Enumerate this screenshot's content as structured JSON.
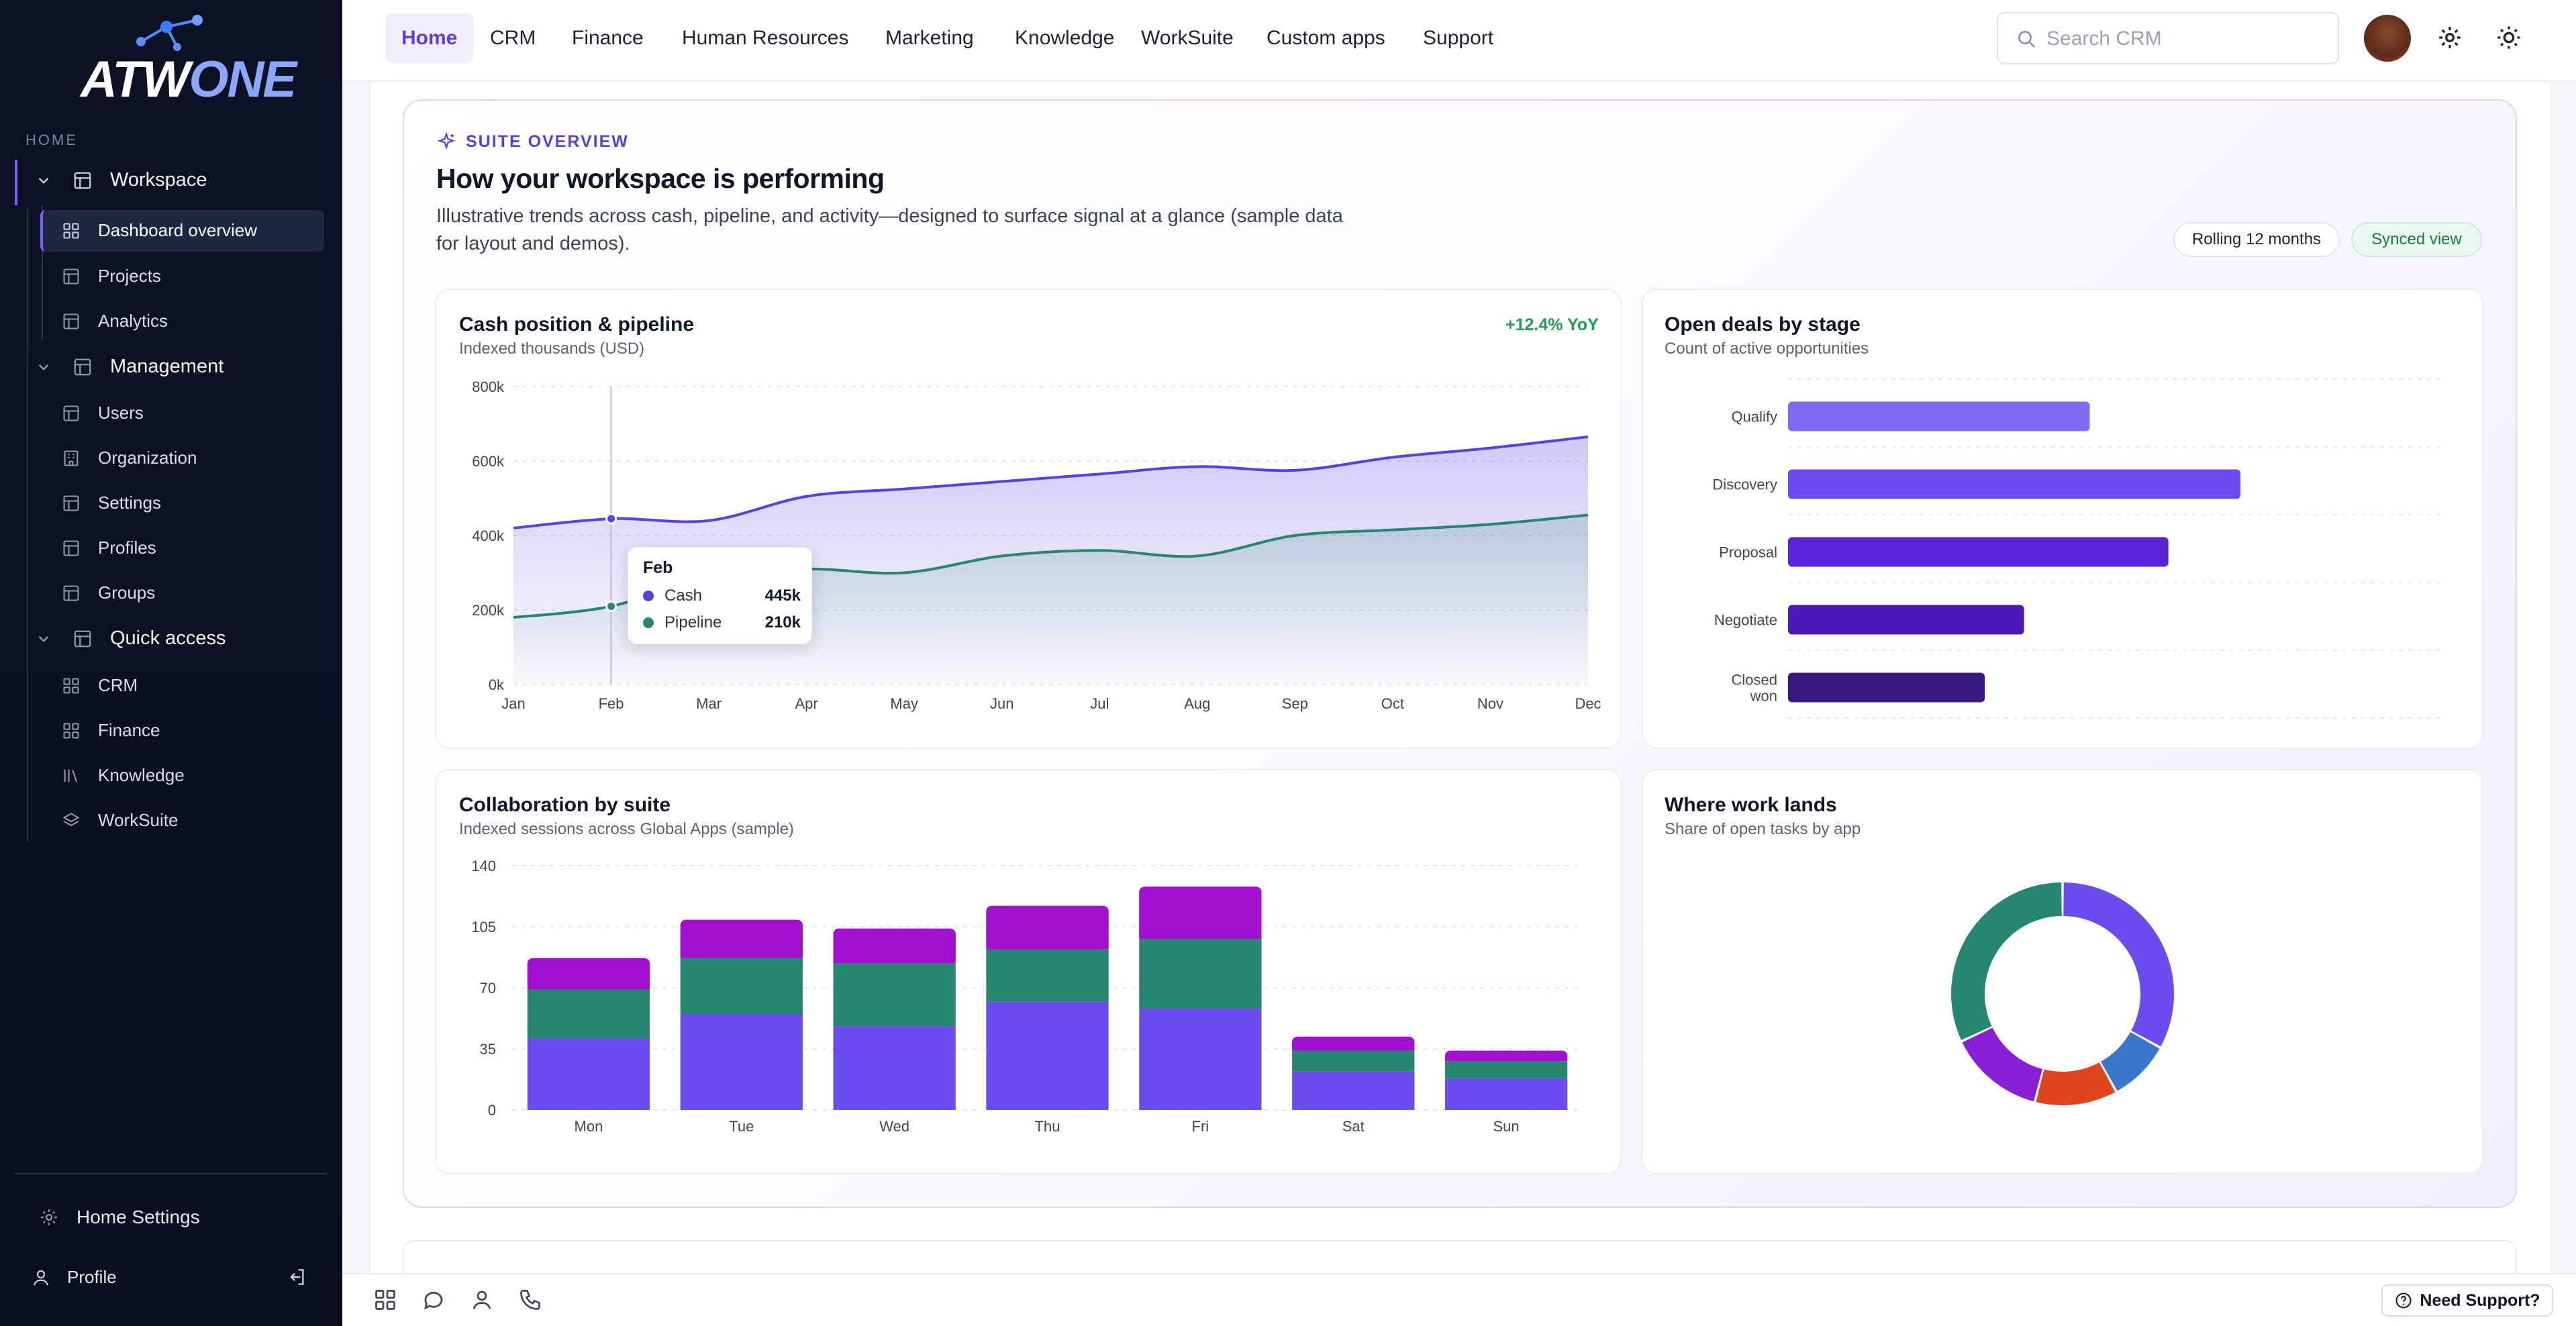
{
  "brand": {
    "logo_text_a": "AT",
    "logo_text_b": "W",
    "logo_text_c": "ONE"
  },
  "sidebar": {
    "heading": "HOME",
    "groups": [
      {
        "label": "Workspace",
        "items": [
          {
            "label": "Dashboard overview"
          },
          {
            "label": "Projects"
          },
          {
            "label": "Analytics"
          }
        ]
      },
      {
        "label": "Management",
        "items": [
          {
            "label": "Users"
          },
          {
            "label": "Organization"
          },
          {
            "label": "Settings"
          },
          {
            "label": "Profiles"
          },
          {
            "label": "Groups"
          }
        ]
      },
      {
        "label": "Quick access",
        "items": [
          {
            "label": "CRM"
          },
          {
            "label": "Finance"
          },
          {
            "label": "Knowledge"
          },
          {
            "label": "WorkSuite"
          }
        ]
      }
    ],
    "home_settings": "Home Settings",
    "profile": "Profile"
  },
  "nav": {
    "items": [
      "Home",
      "CRM",
      "Finance",
      "Human Resources",
      "Marketing",
      "Knowledge",
      "WorkSuite",
      "Custom apps",
      "Support"
    ],
    "active": "Home",
    "active_color": "#5b3fe0"
  },
  "search": {
    "placeholder": "Search CRM",
    "value": ""
  },
  "overview": {
    "eyebrow": "SUITE OVERVIEW",
    "title": "How your workspace is performing",
    "description": "Illustrative trends across cash, pipeline, and activity—designed to surface signal at a glance (sample data for layout and demos).",
    "pill_range": "Rolling 12 months",
    "pill_sync": "Synced view"
  },
  "cards": {
    "cash": {
      "title": "Cash position & pipeline",
      "subtitle": "Indexed thousands (USD)",
      "badge": "+12.4% YoY"
    },
    "deals": {
      "title": "Open deals by stage",
      "subtitle": "Count of active opportunities"
    },
    "collab": {
      "title": "Collaboration by suite",
      "subtitle": "Indexed sessions across Global Apps (sample)"
    },
    "work": {
      "title": "Where work lands",
      "subtitle": "Share of open tasks by app"
    }
  },
  "tooltip": {
    "title": "Feb",
    "cash_label": "Cash",
    "cash_value": "445k",
    "pipeline_label": "Pipeline",
    "pipeline_value": "210k"
  },
  "chart_data": [
    {
      "type": "area",
      "title": "Cash position & pipeline",
      "subtitle": "Indexed thousands (USD)",
      "x": [
        "Jan",
        "Feb",
        "Mar",
        "Apr",
        "May",
        "Jun",
        "Jul",
        "Aug",
        "Sep",
        "Oct",
        "Nov",
        "Dec"
      ],
      "yticks": [
        "0k",
        "200k",
        "400k",
        "600k",
        "800k"
      ],
      "ylim": [
        0,
        800
      ],
      "series": [
        {
          "name": "Cash",
          "color": "#5b3fe0",
          "values": [
            420,
            445,
            440,
            505,
            525,
            545,
            565,
            585,
            575,
            610,
            635,
            665
          ]
        },
        {
          "name": "Pipeline",
          "color": "#25876f",
          "values": [
            180,
            210,
            290,
            310,
            300,
            345,
            360,
            345,
            400,
            415,
            430,
            455
          ]
        }
      ],
      "grid": true
    },
    {
      "type": "bar",
      "orientation": "horizontal",
      "title": "Open deals by stage",
      "subtitle": "Count of active opportunities",
      "categories": [
        "Qualify",
        "Discovery",
        "Proposal",
        "Negotiate",
        "Closed won"
      ],
      "values": [
        46,
        69,
        58,
        36,
        30
      ],
      "xlim": [
        0,
        100
      ],
      "colors": [
        "#7a6bf2",
        "#6a4cf0",
        "#5a23d9",
        "#4b1ab6",
        "#361a80"
      ],
      "grid": true
    },
    {
      "type": "bar",
      "stacked": true,
      "title": "Collaboration by suite",
      "subtitle": "Indexed sessions across Global Apps (sample)",
      "categories": [
        "Mon",
        "Tue",
        "Wed",
        "Thu",
        "Fri",
        "Sat",
        "Sun"
      ],
      "yticks": [
        "0",
        "35",
        "70",
        "105",
        "140"
      ],
      "ylim": [
        0,
        140
      ],
      "series": [
        {
          "color": "#6a4cf0",
          "values": [
            41,
            55,
            48,
            62,
            58,
            22,
            18
          ]
        },
        {
          "color": "#25876f",
          "values": [
            28,
            32,
            36,
            30,
            40,
            12,
            10
          ]
        },
        {
          "color": "#a30fd0",
          "values": [
            18,
            22,
            20,
            25,
            30,
            8,
            6
          ]
        }
      ],
      "grid": true
    },
    {
      "type": "pie",
      "donut": true,
      "title": "Where work lands",
      "subtitle": "Share of open tasks by app",
      "values": [
        33,
        9,
        12,
        14,
        32
      ],
      "colors": [
        "#6a4cf0",
        "#3a77c9",
        "#e0461e",
        "#8a1fd6",
        "#25876f"
      ]
    }
  ],
  "bottombar": {
    "support": "Need Support?"
  }
}
